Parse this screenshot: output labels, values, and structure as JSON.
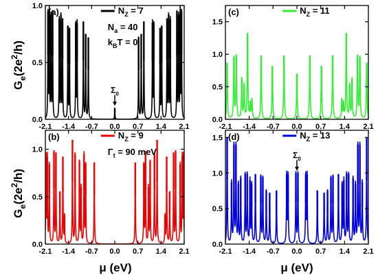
{
  "figure": {
    "ylabel_main": "G",
    "ylabel_sub": "e",
    "ylabel_rest": "(2e",
    "ylabel_sup": "2",
    "ylabel_end": "/h)",
    "xlabel": "μ (eV)"
  },
  "chart_data": [
    {
      "type": "line",
      "panel_label": "(a)",
      "color": "#000000",
      "legend": {
        "main": "N",
        "sub": "Z",
        "value": " = 7"
      },
      "annotations": [
        {
          "main": "N",
          "sub": "a",
          "value": " = 40"
        },
        {
          "main": "k",
          "sub": "B",
          "value": "T = 0"
        }
      ],
      "arrow_label": {
        "main": "Σ",
        "sub": "0"
      },
      "arrow_x": 0.0,
      "xlim": [
        -2.1,
        2.1
      ],
      "ylim": [
        0,
        1.0
      ],
      "yticks": [
        0.0,
        0.5,
        1.0
      ],
      "ytick_labels": [
        "0.0",
        "0.5",
        "1.0"
      ],
      "xticks": [
        -2.1,
        -1.4,
        -0.7,
        0.0,
        0.7,
        1.4,
        2.1
      ],
      "xtick_labels": [
        "-2.1",
        "-1.4",
        "-0.7",
        "0.0",
        "0.7",
        "1.4",
        "2.1"
      ],
      "peak_width": 0.007,
      "peaks": [
        [
          -2.02,
          0.95
        ],
        [
          -1.98,
          0.95
        ],
        [
          -1.93,
          0.92
        ],
        [
          -1.88,
          0.95
        ],
        [
          -1.68,
          0.88
        ],
        [
          -1.63,
          0.92
        ],
        [
          -1.58,
          0.88
        ],
        [
          -1.42,
          0.82
        ],
        [
          -1.37,
          0.8
        ],
        [
          -1.18,
          0.85
        ],
        [
          -1.14,
          0.85
        ],
        [
          -0.95,
          0.86
        ],
        [
          -0.88,
          0.75
        ],
        [
          -0.8,
          0.72
        ],
        [
          0.0,
          0.1
        ],
        [
          0.72,
          0.72
        ],
        [
          0.8,
          0.75
        ],
        [
          0.88,
          0.86
        ],
        [
          1.14,
          0.85
        ],
        [
          1.18,
          0.85
        ],
        [
          1.37,
          0.8
        ],
        [
          1.42,
          0.82
        ],
        [
          1.58,
          0.88
        ],
        [
          1.63,
          0.92
        ],
        [
          1.68,
          0.88
        ],
        [
          1.88,
          0.95
        ],
        [
          1.93,
          0.92
        ],
        [
          1.98,
          0.95
        ],
        [
          2.02,
          0.95
        ]
      ]
    },
    {
      "type": "line",
      "panel_label": "(c)",
      "color": "#33ee33",
      "legend": {
        "main": "N",
        "sub": "Z",
        "value": " = 11"
      },
      "annotations": [],
      "xlim": [
        -2.1,
        2.1
      ],
      "ylim": [
        0,
        1.75
      ],
      "yticks": [
        0.0,
        0.5,
        1.0,
        1.5
      ],
      "ytick_labels": [
        "0.0",
        "0.5",
        "1.0",
        "1.5"
      ],
      "xticks": [
        -2.1,
        -1.4,
        -0.7,
        0.0,
        0.7,
        1.4,
        2.1
      ],
      "xtick_labels": [
        "-2.1",
        "-1.4",
        "-0.7",
        "0.0",
        "0.7",
        "1.4",
        "2.1"
      ],
      "peak_width": 0.012,
      "peaks": [
        [
          -2.05,
          0.87
        ],
        [
          -1.85,
          0.95
        ],
        [
          -1.78,
          0.97
        ],
        [
          -1.62,
          0.62
        ],
        [
          -1.55,
          0.52
        ],
        [
          -1.45,
          1.32
        ],
        [
          -1.37,
          0.24
        ],
        [
          -1.32,
          0.3
        ],
        [
          -1.05,
          0.98
        ],
        [
          -0.72,
          0.82
        ],
        [
          -0.38,
          0.98
        ],
        [
          0.0,
          0.7
        ],
        [
          0.38,
          0.98
        ],
        [
          0.72,
          0.82
        ],
        [
          1.05,
          0.98
        ],
        [
          1.32,
          0.3
        ],
        [
          1.37,
          0.24
        ],
        [
          1.45,
          1.32
        ],
        [
          1.55,
          0.52
        ],
        [
          1.62,
          0.62
        ],
        [
          1.78,
          0.97
        ],
        [
          1.85,
          0.95
        ],
        [
          2.05,
          0.87
        ]
      ]
    },
    {
      "type": "line",
      "panel_label": "(b)",
      "color": "#ee0000",
      "legend": {
        "main": "N",
        "sub": "Z",
        "value": " = 9"
      },
      "annotations": [
        {
          "main": "Γ",
          "sub": "t",
          "value": " = 90 meV"
        }
      ],
      "xlim": [
        -2.1,
        2.1
      ],
      "ylim": [
        0,
        1.2
      ],
      "yticks": [
        0.0,
        0.5,
        1.0
      ],
      "ytick_labels": [
        "0.0",
        "0.5",
        "1.0"
      ],
      "xticks": [
        -2.1,
        -1.4,
        -0.7,
        0.0,
        0.7,
        1.4,
        2.1
      ],
      "xtick_labels": [
        "-2.1",
        "-1.4",
        "-0.7",
        "0.0",
        "0.7",
        "1.4",
        "2.1"
      ],
      "peak_width": 0.008,
      "peaks": [
        [
          -2.08,
          0.94
        ],
        [
          -2.04,
          0.92
        ],
        [
          -1.98,
          0.84
        ],
        [
          -1.84,
          0.98
        ],
        [
          -1.78,
          0.96
        ],
        [
          -1.66,
          0.55
        ],
        [
          -1.57,
          0.92
        ],
        [
          -1.52,
          0.3
        ],
        [
          -1.28,
          1.1
        ],
        [
          -1.2,
          0.95
        ],
        [
          -1.07,
          0.88
        ],
        [
          -1.02,
          0.6
        ],
        [
          -0.93,
          0.95
        ],
        [
          -0.88,
          0.85
        ],
        [
          -0.62,
          0.86
        ],
        [
          0.62,
          0.86
        ],
        [
          0.88,
          0.85
        ],
        [
          0.93,
          0.95
        ],
        [
          1.02,
          0.6
        ],
        [
          1.07,
          0.88
        ],
        [
          1.2,
          0.95
        ],
        [
          1.28,
          1.1
        ],
        [
          1.52,
          0.3
        ],
        [
          1.57,
          0.92
        ],
        [
          1.66,
          0.55
        ],
        [
          1.78,
          0.96
        ],
        [
          1.84,
          0.98
        ],
        [
          1.98,
          0.84
        ],
        [
          2.04,
          0.92
        ],
        [
          2.08,
          0.94
        ]
      ]
    },
    {
      "type": "line",
      "panel_label": "(d)",
      "color": "#0000dd",
      "legend": {
        "main": "N",
        "sub": "Z",
        "value": " = 13"
      },
      "annotations": [],
      "arrow_label": {
        "main": "Σ",
        "sub": "0"
      },
      "arrow_x": 0.0,
      "xlim": [
        -2.1,
        2.1
      ],
      "ylim": [
        0,
        1.6
      ],
      "yticks": [
        0.0,
        0.5,
        1.0,
        1.5
      ],
      "ytick_labels": [
        "0.0",
        "0.5",
        "1.0",
        "1.5"
      ],
      "xticks": [
        -2.1,
        -1.4,
        -0.7,
        0.0,
        0.7,
        1.4,
        2.1
      ],
      "xtick_labels": [
        "-2.1",
        "-1.4",
        "-0.7",
        "0.0",
        "0.7",
        "1.4",
        "2.1"
      ],
      "peak_width": 0.009,
      "peaks": [
        [
          -2.05,
          1.5
        ],
        [
          -1.92,
          0.87
        ],
        [
          -1.85,
          1.4
        ],
        [
          -1.79,
          1.4
        ],
        [
          -1.72,
          0.85
        ],
        [
          -1.65,
          0.93
        ],
        [
          -1.52,
          0.99
        ],
        [
          -1.46,
          0.99
        ],
        [
          -1.38,
          0.9
        ],
        [
          -1.33,
          0.85
        ],
        [
          -1.22,
          0.98
        ],
        [
          -1.06,
          0.96
        ],
        [
          -1.0,
          0.94
        ],
        [
          -0.9,
          0.75
        ],
        [
          -0.8,
          0.72
        ],
        [
          -0.6,
          0.75
        ],
        [
          -0.3,
          0.98
        ],
        [
          -0.26,
          0.98
        ],
        [
          -0.03,
          1.0
        ],
        [
          0.03,
          1.0
        ],
        [
          0.26,
          0.98
        ],
        [
          0.3,
          0.98
        ],
        [
          0.6,
          0.75
        ],
        [
          0.8,
          0.72
        ],
        [
          0.9,
          0.75
        ],
        [
          1.0,
          0.94
        ],
        [
          1.06,
          0.96
        ],
        [
          1.22,
          0.98
        ],
        [
          1.33,
          0.85
        ],
        [
          1.38,
          0.9
        ],
        [
          1.46,
          0.99
        ],
        [
          1.52,
          0.99
        ],
        [
          1.65,
          0.93
        ],
        [
          1.72,
          0.85
        ],
        [
          1.79,
          1.4
        ],
        [
          1.85,
          1.4
        ],
        [
          1.92,
          0.87
        ],
        [
          2.05,
          1.5
        ]
      ]
    }
  ]
}
